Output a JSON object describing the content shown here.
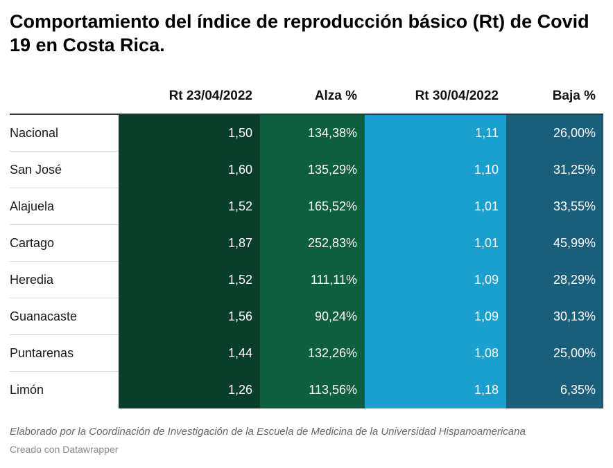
{
  "title": "Comportamiento del índice de reproducción básico (Rt) de Covid 19 en Costa Rica.",
  "chart_data": {
    "type": "table",
    "columns": [
      "",
      "Rt 23/04/2022",
      "Alza %",
      "Rt 30/04/2022",
      "Baja %"
    ],
    "column_colors": [
      "#ffffff",
      "#0a3d2a",
      "#0e5e40",
      "#1aa0d0",
      "#1a5f7a"
    ],
    "rows": [
      {
        "region": "Nacional",
        "rt1": "1,50",
        "alza": "134,38%",
        "rt2": "1,11",
        "baja": "26,00%"
      },
      {
        "region": "San José",
        "rt1": "1,60",
        "alza": "135,29%",
        "rt2": "1,10",
        "baja": "31,25%"
      },
      {
        "region": "Alajuela",
        "rt1": "1,52",
        "alza": "165,52%",
        "rt2": "1,01",
        "baja": "33,55%"
      },
      {
        "region": "Cartago",
        "rt1": "1,87",
        "alza": "252,83%",
        "rt2": "1,01",
        "baja": "45,99%"
      },
      {
        "region": "Heredia",
        "rt1": "1,52",
        "alza": "111,11%",
        "rt2": "1,09",
        "baja": "28,29%"
      },
      {
        "region": "Guanacaste",
        "rt1": "1,56",
        "alza": "90,24%",
        "rt2": "1,09",
        "baja": "30,13%"
      },
      {
        "region": "Puntarenas",
        "rt1": "1,44",
        "alza": "132,26%",
        "rt2": "1,08",
        "baja": "25,00%"
      },
      {
        "region": "Limón",
        "rt1": "1,26",
        "alza": "113,56%",
        "rt2": "1,18",
        "baja": "6,35%"
      }
    ]
  },
  "note": "Elaborado por la Coordinación de Investigación de la Escuela de Medicina de la Universidad Hispanoamericana",
  "credit": "Creado con Datawrapper"
}
